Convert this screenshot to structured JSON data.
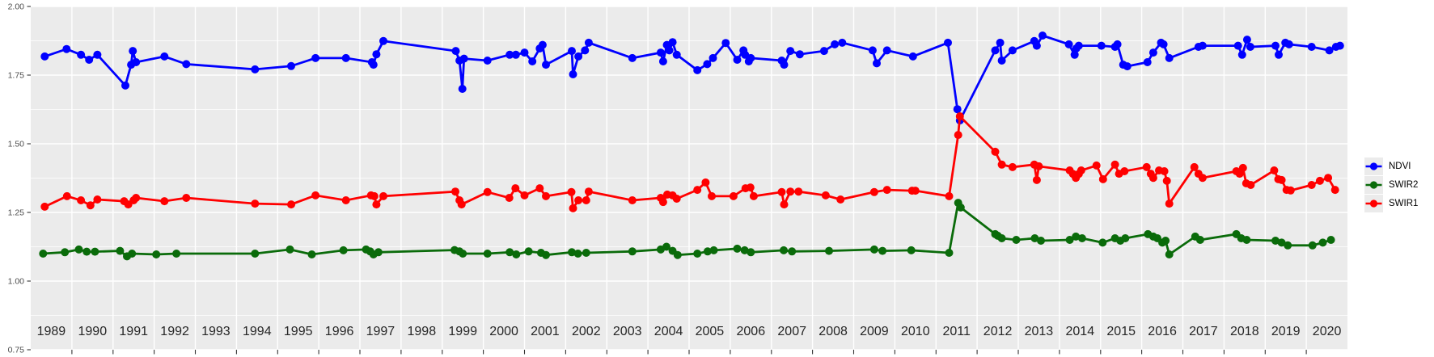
{
  "figure": {
    "background": "#FFFFFF",
    "panel_background": "#EBEBEB",
    "grid_color": "#FFFFFF",
    "tick_color": "#333333",
    "y_label_color": "#4D4D4D",
    "x_label_color": "#262626"
  },
  "chart_data": {
    "type": "line",
    "title": "",
    "xlabel": "",
    "ylabel": "",
    "grid": true,
    "x_axis": {
      "range": [
        1989,
        2021
      ],
      "tick_labels": [
        "1989",
        "1990",
        "1991",
        "1992",
        "1993",
        "1994",
        "1995",
        "1996",
        "1997",
        "1998",
        "1999",
        "2000",
        "2001",
        "2002",
        "2003",
        "2004",
        "2005",
        "2006",
        "2007",
        "2008",
        "2009",
        "2010",
        "2011",
        "2012",
        "2013",
        "2014",
        "2015",
        "2016",
        "2017",
        "2018",
        "2019",
        "2020"
      ]
    },
    "y_axis": {
      "range": [
        0.75,
        2.0
      ],
      "tick_values": [
        2.0,
        1.75,
        1.5,
        1.25,
        1.0,
        0.75
      ],
      "tick_labels": [
        "2.00",
        "1.75",
        "1.50",
        "1.25",
        "1.00",
        "0.75"
      ],
      "minor_gridlines": [
        1.875,
        1.625,
        1.375,
        1.125,
        0.875
      ]
    },
    "legend": {
      "position": "right",
      "items": [
        "NDVI",
        "SWIR2",
        "SWIR1"
      ]
    },
    "series": [
      {
        "name": "NDVI",
        "color": "#0000FF",
        "points": [
          [
            1989.34,
            1.818
          ],
          [
            1989.87,
            1.845
          ],
          [
            1990.22,
            1.824
          ],
          [
            1990.42,
            1.806
          ],
          [
            1990.62,
            1.824
          ],
          [
            1991.3,
            1.712
          ],
          [
            1991.44,
            1.788
          ],
          [
            1991.48,
            1.838
          ],
          [
            1991.56,
            1.797
          ],
          [
            1992.25,
            1.818
          ],
          [
            1992.78,
            1.79
          ],
          [
            1994.45,
            1.771
          ],
          [
            1995.33,
            1.783
          ],
          [
            1995.92,
            1.812
          ],
          [
            1996.66,
            1.812
          ],
          [
            1997.29,
            1.797
          ],
          [
            1997.33,
            1.788
          ],
          [
            1997.4,
            1.826
          ],
          [
            1997.57,
            1.874
          ],
          [
            1999.33,
            1.838
          ],
          [
            1999.42,
            1.803
          ],
          [
            1999.49,
            1.7
          ],
          [
            1999.53,
            1.81
          ],
          [
            2000.1,
            1.803
          ],
          [
            2000.64,
            1.824
          ],
          [
            2000.79,
            1.824
          ],
          [
            2001.0,
            1.832
          ],
          [
            2001.19,
            1.8
          ],
          [
            2001.37,
            1.847
          ],
          [
            2001.44,
            1.86
          ],
          [
            2001.52,
            1.788
          ],
          [
            2002.15,
            1.838
          ],
          [
            2002.18,
            1.753
          ],
          [
            2002.31,
            1.818
          ],
          [
            2002.47,
            1.84
          ],
          [
            2002.56,
            1.868
          ],
          [
            2003.62,
            1.812
          ],
          [
            2004.31,
            1.832
          ],
          [
            2004.37,
            1.8
          ],
          [
            2004.46,
            1.86
          ],
          [
            2004.52,
            1.84
          ],
          [
            2004.6,
            1.87
          ],
          [
            2004.7,
            1.824
          ],
          [
            2005.2,
            1.768
          ],
          [
            2005.44,
            1.79
          ],
          [
            2005.58,
            1.812
          ],
          [
            2005.89,
            1.867
          ],
          [
            2006.17,
            1.806
          ],
          [
            2006.32,
            1.84
          ],
          [
            2006.36,
            1.824
          ],
          [
            2006.45,
            1.8
          ],
          [
            2006.5,
            1.812
          ],
          [
            2007.25,
            1.803
          ],
          [
            2007.31,
            1.788
          ],
          [
            2007.46,
            1.838
          ],
          [
            2007.69,
            1.826
          ],
          [
            2008.28,
            1.838
          ],
          [
            2008.54,
            1.862
          ],
          [
            2008.72,
            1.868
          ],
          [
            2009.46,
            1.84
          ],
          [
            2009.56,
            1.793
          ],
          [
            2009.81,
            1.84
          ],
          [
            2010.44,
            1.818
          ],
          [
            2011.29,
            1.868
          ],
          [
            2011.52,
            1.626
          ],
          [
            2011.58,
            1.585
          ],
          [
            2012.44,
            1.84
          ],
          [
            2012.56,
            1.868
          ],
          [
            2012.6,
            1.803
          ],
          [
            2012.86,
            1.84
          ],
          [
            2013.39,
            1.874
          ],
          [
            2013.45,
            1.857
          ],
          [
            2013.59,
            1.894
          ],
          [
            2014.23,
            1.862
          ],
          [
            2014.37,
            1.824
          ],
          [
            2014.41,
            1.847
          ],
          [
            2014.47,
            1.857
          ],
          [
            2015.02,
            1.857
          ],
          [
            2015.35,
            1.853
          ],
          [
            2015.41,
            1.862
          ],
          [
            2015.55,
            1.788
          ],
          [
            2015.65,
            1.782
          ],
          [
            2016.14,
            1.797
          ],
          [
            2016.28,
            1.832
          ],
          [
            2016.47,
            1.868
          ],
          [
            2016.53,
            1.862
          ],
          [
            2016.67,
            1.812
          ],
          [
            2017.38,
            1.853
          ],
          [
            2017.48,
            1.857
          ],
          [
            2018.34,
            1.857
          ],
          [
            2018.44,
            1.824
          ],
          [
            2018.56,
            1.879
          ],
          [
            2018.64,
            1.853
          ],
          [
            2019.25,
            1.857
          ],
          [
            2019.33,
            1.824
          ],
          [
            2019.49,
            1.868
          ],
          [
            2019.58,
            1.862
          ],
          [
            2020.13,
            1.853
          ],
          [
            2020.56,
            1.84
          ],
          [
            2020.72,
            1.853
          ],
          [
            2020.82,
            1.857
          ]
        ]
      },
      {
        "name": "SWIR2",
        "color": "#0A6B0A",
        "points": [
          [
            1989.3,
            1.1
          ],
          [
            1989.83,
            1.105
          ],
          [
            1990.17,
            1.115
          ],
          [
            1990.36,
            1.107
          ],
          [
            1990.56,
            1.107
          ],
          [
            1991.17,
            1.11
          ],
          [
            1991.34,
            1.09
          ],
          [
            1991.46,
            1.1
          ],
          [
            1992.05,
            1.097
          ],
          [
            1992.54,
            1.1
          ],
          [
            1994.45,
            1.1
          ],
          [
            1995.3,
            1.115
          ],
          [
            1995.83,
            1.097
          ],
          [
            1996.6,
            1.112
          ],
          [
            1997.15,
            1.115
          ],
          [
            1997.25,
            1.108
          ],
          [
            1997.33,
            1.097
          ],
          [
            1997.45,
            1.105
          ],
          [
            1999.3,
            1.113
          ],
          [
            1999.42,
            1.108
          ],
          [
            1999.5,
            1.1
          ],
          [
            2000.1,
            1.1
          ],
          [
            2000.64,
            1.105
          ],
          [
            2000.8,
            1.097
          ],
          [
            2001.1,
            1.108
          ],
          [
            2001.4,
            1.103
          ],
          [
            2001.52,
            1.095
          ],
          [
            2002.15,
            1.105
          ],
          [
            2002.3,
            1.1
          ],
          [
            2002.5,
            1.103
          ],
          [
            2003.62,
            1.108
          ],
          [
            2004.31,
            1.115
          ],
          [
            2004.45,
            1.125
          ],
          [
            2004.6,
            1.11
          ],
          [
            2004.72,
            1.095
          ],
          [
            2005.2,
            1.1
          ],
          [
            2005.45,
            1.108
          ],
          [
            2005.6,
            1.112
          ],
          [
            2006.17,
            1.118
          ],
          [
            2006.35,
            1.112
          ],
          [
            2006.5,
            1.105
          ],
          [
            2007.3,
            1.112
          ],
          [
            2007.5,
            1.108
          ],
          [
            2008.4,
            1.11
          ],
          [
            2009.5,
            1.115
          ],
          [
            2009.7,
            1.11
          ],
          [
            2010.4,
            1.112
          ],
          [
            2011.32,
            1.103
          ],
          [
            2011.54,
            1.285
          ],
          [
            2011.6,
            1.268
          ],
          [
            2012.44,
            1.171
          ],
          [
            2012.5,
            1.165
          ],
          [
            2012.6,
            1.156
          ],
          [
            2012.95,
            1.15
          ],
          [
            2013.4,
            1.156
          ],
          [
            2013.55,
            1.147
          ],
          [
            2014.25,
            1.15
          ],
          [
            2014.4,
            1.162
          ],
          [
            2014.55,
            1.156
          ],
          [
            2015.05,
            1.14
          ],
          [
            2015.35,
            1.156
          ],
          [
            2015.48,
            1.147
          ],
          [
            2015.6,
            1.156
          ],
          [
            2016.15,
            1.171
          ],
          [
            2016.28,
            1.162
          ],
          [
            2016.38,
            1.156
          ],
          [
            2016.5,
            1.14
          ],
          [
            2016.58,
            1.147
          ],
          [
            2016.67,
            1.097
          ],
          [
            2017.3,
            1.162
          ],
          [
            2017.42,
            1.15
          ],
          [
            2018.3,
            1.171
          ],
          [
            2018.42,
            1.156
          ],
          [
            2018.55,
            1.15
          ],
          [
            2019.25,
            1.147
          ],
          [
            2019.4,
            1.14
          ],
          [
            2019.55,
            1.13
          ],
          [
            2020.15,
            1.13
          ],
          [
            2020.4,
            1.14
          ],
          [
            2020.6,
            1.15
          ]
        ]
      },
      {
        "name": "SWIR1",
        "color": "#FF0000",
        "points": [
          [
            1989.34,
            1.271
          ],
          [
            1989.88,
            1.309
          ],
          [
            1990.22,
            1.294
          ],
          [
            1990.45,
            1.276
          ],
          [
            1990.62,
            1.297
          ],
          [
            1991.27,
            1.291
          ],
          [
            1991.37,
            1.279
          ],
          [
            1991.5,
            1.294
          ],
          [
            1991.56,
            1.303
          ],
          [
            1992.25,
            1.291
          ],
          [
            1992.78,
            1.303
          ],
          [
            1994.45,
            1.282
          ],
          [
            1995.33,
            1.279
          ],
          [
            1995.92,
            1.312
          ],
          [
            1996.66,
            1.294
          ],
          [
            1997.27,
            1.312
          ],
          [
            1997.35,
            1.309
          ],
          [
            1997.4,
            1.279
          ],
          [
            1997.57,
            1.309
          ],
          [
            1999.32,
            1.326
          ],
          [
            1999.42,
            1.294
          ],
          [
            1999.47,
            1.279
          ],
          [
            2000.1,
            1.324
          ],
          [
            2000.63,
            1.303
          ],
          [
            2000.78,
            1.338
          ],
          [
            2001.0,
            1.312
          ],
          [
            2001.37,
            1.338
          ],
          [
            2001.52,
            1.309
          ],
          [
            2002.14,
            1.324
          ],
          [
            2002.18,
            1.265
          ],
          [
            2002.31,
            1.294
          ],
          [
            2002.5,
            1.294
          ],
          [
            2002.56,
            1.326
          ],
          [
            2003.62,
            1.294
          ],
          [
            2004.31,
            1.303
          ],
          [
            2004.37,
            1.288
          ],
          [
            2004.47,
            1.315
          ],
          [
            2004.6,
            1.312
          ],
          [
            2004.7,
            1.3
          ],
          [
            2005.2,
            1.332
          ],
          [
            2005.4,
            1.359
          ],
          [
            2005.55,
            1.309
          ],
          [
            2006.08,
            1.309
          ],
          [
            2006.37,
            1.338
          ],
          [
            2006.49,
            1.341
          ],
          [
            2006.57,
            1.309
          ],
          [
            2007.25,
            1.324
          ],
          [
            2007.31,
            1.279
          ],
          [
            2007.46,
            1.326
          ],
          [
            2007.66,
            1.326
          ],
          [
            2008.32,
            1.312
          ],
          [
            2008.68,
            1.297
          ],
          [
            2009.5,
            1.324
          ],
          [
            2009.81,
            1.332
          ],
          [
            2010.42,
            1.329
          ],
          [
            2010.5,
            1.329
          ],
          [
            2011.32,
            1.309
          ],
          [
            2011.54,
            1.532
          ],
          [
            2011.58,
            1.6
          ],
          [
            2012.44,
            1.471
          ],
          [
            2012.6,
            1.424
          ],
          [
            2012.86,
            1.415
          ],
          [
            2013.39,
            1.424
          ],
          [
            2013.45,
            1.368
          ],
          [
            2013.5,
            1.418
          ],
          [
            2014.25,
            1.403
          ],
          [
            2014.33,
            1.39
          ],
          [
            2014.4,
            1.376
          ],
          [
            2014.47,
            1.39
          ],
          [
            2014.53,
            1.403
          ],
          [
            2014.9,
            1.421
          ],
          [
            2015.06,
            1.371
          ],
          [
            2015.35,
            1.424
          ],
          [
            2015.45,
            1.391
          ],
          [
            2015.58,
            1.4
          ],
          [
            2016.12,
            1.415
          ],
          [
            2016.22,
            1.391
          ],
          [
            2016.28,
            1.376
          ],
          [
            2016.42,
            1.403
          ],
          [
            2016.55,
            1.4
          ],
          [
            2016.61,
            1.365
          ],
          [
            2016.67,
            1.282
          ],
          [
            2017.28,
            1.415
          ],
          [
            2017.38,
            1.391
          ],
          [
            2017.48,
            1.376
          ],
          [
            2018.3,
            1.4
          ],
          [
            2018.38,
            1.391
          ],
          [
            2018.46,
            1.412
          ],
          [
            2018.54,
            1.356
          ],
          [
            2018.65,
            1.35
          ],
          [
            2019.22,
            1.403
          ],
          [
            2019.32,
            1.371
          ],
          [
            2019.4,
            1.368
          ],
          [
            2019.52,
            1.332
          ],
          [
            2019.62,
            1.33
          ],
          [
            2020.13,
            1.35
          ],
          [
            2020.33,
            1.365
          ],
          [
            2020.53,
            1.376
          ],
          [
            2020.7,
            1.332
          ]
        ]
      }
    ]
  }
}
